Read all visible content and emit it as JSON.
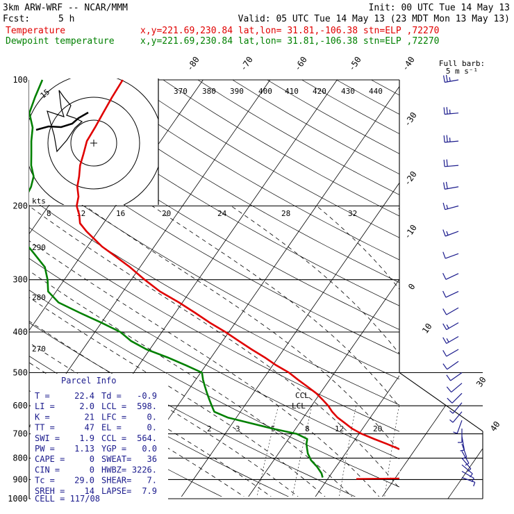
{
  "header": {
    "line1_left": "3km ARW-WRF -- NCAR/MMM",
    "line1_right": "Init: 00 UTC Tue 14 May 13",
    "line2_fcst": "Fcst:",
    "line2_hours": "5 h",
    "line2_right": "Valid: 05 UTC Tue 14 May 13 (23 MDT Mon 13 May 13)",
    "temp_label": "Temperature",
    "temp_info": "x,y=221.69,230.84   lat,lon= 31.81,-106.38   stn=ELP ,72270",
    "dew_label": "Dewpoint temperature",
    "dew_info": "x,y=221.69,230.84   lat,lon= 31.81,-106.38   stn=ELP ,72270",
    "temp_color": "#e00000",
    "dew_color": "#008000"
  },
  "barb_legend": {
    "title": "Full barb:",
    "value": "5 m s⁻¹"
  },
  "hodograph": {
    "units": "kts",
    "ring_label": "15"
  },
  "parcel_info": {
    "title": "Parcel Info",
    "rows": [
      [
        "T  =",
        "22.4",
        "Td  =",
        "-0.9"
      ],
      [
        "LI =",
        "2.0",
        "LCL =",
        "598."
      ],
      [
        "K  =",
        "21",
        "LFC =",
        "0."
      ],
      [
        "TT =",
        "47",
        "EL  =",
        "0."
      ],
      [
        "SWI =",
        "1.9",
        "CCL =",
        "564."
      ],
      [
        "PW =",
        "1.13",
        "YGP =",
        "0.0"
      ],
      [
        "CAPE =",
        "0",
        "SWEAT=",
        "36"
      ],
      [
        "CIN =",
        "0",
        "HWBZ=",
        "3226."
      ],
      [
        "Tc =",
        "29.0",
        "SHEAR=",
        "7."
      ],
      [
        "SREH =",
        "14",
        "LAPSE=",
        "7.9"
      ]
    ],
    "cell": "CELL = 117/08"
  },
  "chart_data": {
    "type": "skew-t",
    "pressure_levels": [
      100,
      200,
      300,
      400,
      500,
      600,
      700,
      800,
      900,
      1000
    ],
    "pressure_labels": [
      "100",
      "200",
      "300",
      "400",
      "500",
      "600",
      "700",
      "800",
      "900",
      "1000"
    ],
    "isotherm_labels": [
      "-80",
      "-70",
      "-60",
      "-50",
      "-40",
      "-30",
      "-20",
      "-10",
      "0",
      "10",
      "30",
      "40"
    ],
    "theta_labels_top": [
      "370",
      "380",
      "390",
      "400",
      "410",
      "420",
      "430",
      "440"
    ],
    "theta_labels_left": [
      "290",
      "280",
      "270"
    ],
    "mixing_ratio_labels_upper": [
      "8",
      "12",
      "16",
      "20",
      "24",
      "28",
      "32"
    ],
    "mixing_ratio_labels_lower": [
      "2",
      "3",
      "5",
      "8",
      "12",
      "20"
    ],
    "lcl_label": "LCL",
    "ccl_label": "CCL",
    "temperature": {
      "name": "Temperature",
      "p": [
        890,
        880,
        860,
        830,
        800,
        770,
        740,
        720,
        700,
        680,
        660,
        640,
        620,
        600,
        580,
        560,
        540,
        520,
        500,
        480,
        460,
        440,
        420,
        400,
        380,
        360,
        340,
        320,
        300,
        280,
        260,
        250,
        240,
        230,
        220,
        210,
        200,
        190,
        180,
        170,
        160,
        150,
        140,
        130,
        120,
        110,
        100
      ],
      "t": [
        22.4,
        21.5,
        18.8,
        15.2,
        12.0,
        8.6,
        5.2,
        2.8,
        0.4,
        -1.6,
        -3.2,
        -4.9,
        -6.3,
        -7.5,
        -9.0,
        -10.6,
        -12.6,
        -14.7,
        -16.8,
        -19.5,
        -22.0,
        -24.8,
        -27.6,
        -30.5,
        -33.8,
        -37.0,
        -40.5,
        -44.5,
        -48.0,
        -51.5,
        -55.6,
        -57.8,
        -59.7,
        -61.7,
        -63.5,
        -64.5,
        -65.8,
        -66.5,
        -67.7,
        -68.5,
        -69.5,
        -70.2,
        -71.0,
        -71.2,
        -71.5,
        -71.8,
        -72.0
      ]
    },
    "dewpoint": {
      "name": "Dewpoint temperature",
      "p": [
        890,
        870,
        840,
        810,
        780,
        760,
        740,
        720,
        700,
        680,
        660,
        640,
        620,
        600,
        580,
        560,
        540,
        520,
        500,
        480,
        460,
        440,
        420,
        400,
        380,
        360,
        340,
        320,
        300,
        280,
        260,
        250,
        240,
        230,
        220,
        210,
        200,
        190,
        180,
        170,
        160,
        150,
        140,
        130,
        120,
        110,
        100
      ],
      "td": [
        -0.9,
        -1.5,
        -2.8,
        -4.4,
        -5.6,
        -6.2,
        -6.8,
        -7.2,
        -9.3,
        -13.5,
        -17.3,
        -21.3,
        -23.9,
        -24.9,
        -25.9,
        -26.9,
        -27.9,
        -28.9,
        -29.8,
        -33.0,
        -36.5,
        -40.5,
        -43.7,
        -46.2,
        -50.0,
        -54.2,
        -58.5,
        -61.2,
        -62.5,
        -64.2,
        -67.2,
        -68.8,
        -70.0,
        -71.6,
        -73.1,
        -73.5,
        -74.0,
        -74.3,
        -74.6,
        -75.3,
        -76.8,
        -78.0,
        -79.3,
        -80.5,
        -82.5,
        -83.3,
        -84.0
      ]
    },
    "wind_barbs": [
      {
        "p": 100,
        "spd": 25,
        "dir": 260
      },
      {
        "p": 120,
        "spd": 25,
        "dir": 265
      },
      {
        "p": 140,
        "spd": 25,
        "dir": 265
      },
      {
        "p": 160,
        "spd": 20,
        "dir": 265
      },
      {
        "p": 180,
        "spd": 20,
        "dir": 260
      },
      {
        "p": 200,
        "spd": 15,
        "dir": 255
      },
      {
        "p": 230,
        "spd": 15,
        "dir": 250
      },
      {
        "p": 260,
        "spd": 10,
        "dir": 250
      },
      {
        "p": 290,
        "spd": 10,
        "dir": 245
      },
      {
        "p": 320,
        "spd": 10,
        "dir": 245
      },
      {
        "p": 350,
        "spd": 10,
        "dir": 240
      },
      {
        "p": 380,
        "spd": 15,
        "dir": 240
      },
      {
        "p": 410,
        "spd": 15,
        "dir": 240
      },
      {
        "p": 440,
        "spd": 10,
        "dir": 240
      },
      {
        "p": 470,
        "spd": 10,
        "dir": 235
      },
      {
        "p": 500,
        "spd": 10,
        "dir": 235
      },
      {
        "p": 530,
        "spd": 10,
        "dir": 230
      },
      {
        "p": 560,
        "spd": 10,
        "dir": 225
      },
      {
        "p": 590,
        "spd": 5,
        "dir": 220
      },
      {
        "p": 620,
        "spd": 5,
        "dir": 220
      },
      {
        "p": 650,
        "spd": 5,
        "dir": 200
      },
      {
        "p": 680,
        "spd": 5,
        "dir": 180
      },
      {
        "p": 710,
        "spd": 5,
        "dir": 170
      },
      {
        "p": 740,
        "spd": 5,
        "dir": 160
      },
      {
        "p": 770,
        "spd": 5,
        "dir": 150
      },
      {
        "p": 800,
        "spd": 5,
        "dir": 140
      },
      {
        "p": 830,
        "spd": 5,
        "dir": 130
      },
      {
        "p": 860,
        "spd": 5,
        "dir": 120
      },
      {
        "p": 890,
        "spd": 5,
        "dir": 110
      }
    ]
  }
}
